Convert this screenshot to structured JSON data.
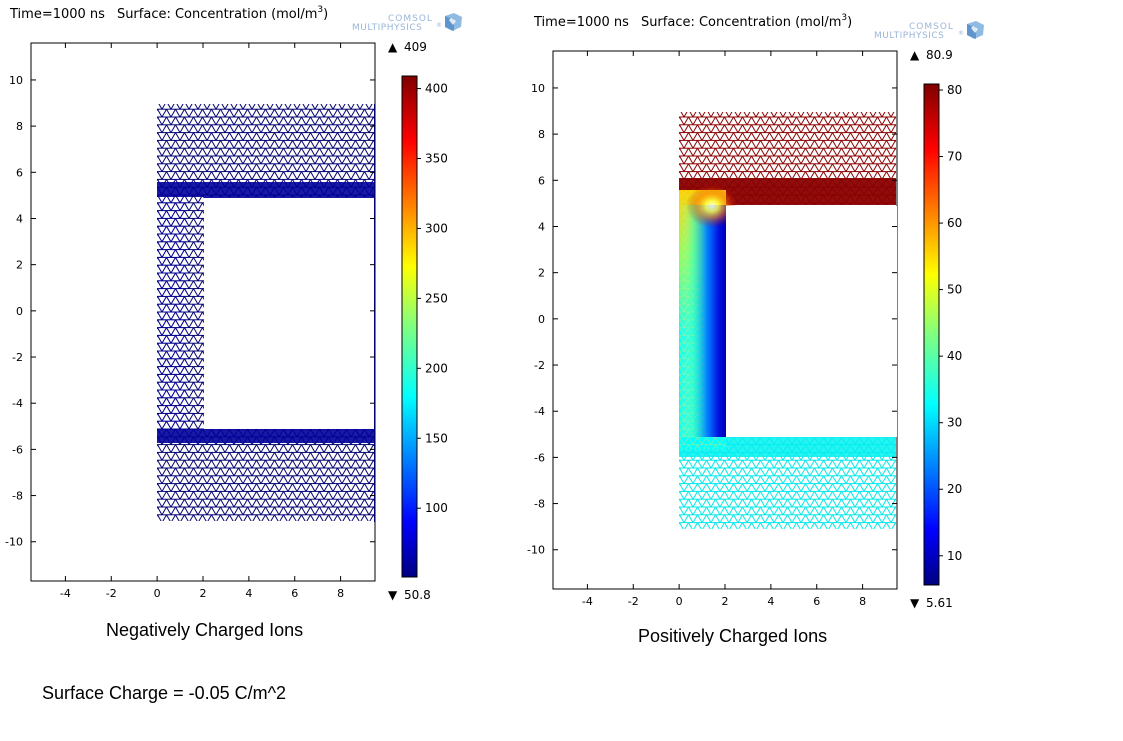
{
  "chart_data": [
    {
      "type": "heatmap",
      "title_time": "Time=1000 ns",
      "title_quantity": "Surface: Concentration (mol/m",
      "title_unit_sup": "3",
      "title_close": ")",
      "logo_line1": "COMSOL",
      "logo_line2": "MULTIPHYSICS",
      "logo_reg": "®",
      "xlim": [
        -5.5,
        9.5
      ],
      "ylim": [
        -11.7,
        11.6
      ],
      "xticks": [
        -4,
        -2,
        0,
        2,
        4,
        6,
        8
      ],
      "yticks": [
        -10,
        -8,
        -6,
        -4,
        -2,
        0,
        2,
        4,
        6,
        8,
        10
      ],
      "domain_outer": {
        "x": [
          0,
          9.5
        ],
        "y": [
          -9,
          9
        ]
      },
      "cutout": {
        "x": [
          2,
          9.5
        ],
        "y": [
          -5,
          5
        ]
      },
      "colorbar": {
        "min": 50.8,
        "max": 409,
        "ticks": [
          100,
          150,
          200,
          250,
          300,
          350,
          400
        ]
      },
      "max_label": "409",
      "min_label": "50.8",
      "caption": "Negatively Charged Ions"
    },
    {
      "type": "heatmap",
      "title_time": "Time=1000 ns",
      "title_quantity": "Surface: Concentration (mol/m",
      "title_unit_sup": "3",
      "title_close": ")",
      "logo_line1": "COMSOL",
      "logo_line2": "MULTIPHYSICS",
      "logo_reg": "®",
      "xlim": [
        -5.5,
        9.5
      ],
      "ylim": [
        -11.7,
        11.6
      ],
      "xticks": [
        -4,
        -2,
        0,
        2,
        4,
        6,
        8
      ],
      "yticks": [
        -10,
        -8,
        -6,
        -4,
        -2,
        0,
        2,
        4,
        6,
        8,
        10
      ],
      "domain_outer": {
        "x": [
          0,
          9.5
        ],
        "y": [
          -9,
          9
        ]
      },
      "cutout": {
        "x": [
          2,
          9.5
        ],
        "y": [
          -5,
          5
        ]
      },
      "colorbar": {
        "min": 5.61,
        "max": 80.9,
        "ticks": [
          10,
          20,
          30,
          40,
          50,
          60,
          70,
          80
        ]
      },
      "max_label": "80.9",
      "min_label": "5.61",
      "caption": "Positively Charged Ions"
    }
  ],
  "colors": {
    "dark_blue": "#000080",
    "mid_blue": "#0000ff",
    "cyan": "#00ffff",
    "yellow": "#ffff00",
    "red": "#ff0000",
    "dark_red": "#800000",
    "mesh_dark": "#000070",
    "mesh_red": "#8a0000",
    "mesh_cyan": "#00f0f0"
  },
  "markers": {
    "max_marker": "▲",
    "min_marker": "▼"
  },
  "footer": {
    "surface_charge": "Surface Charge = -0.05 C/m^2"
  }
}
